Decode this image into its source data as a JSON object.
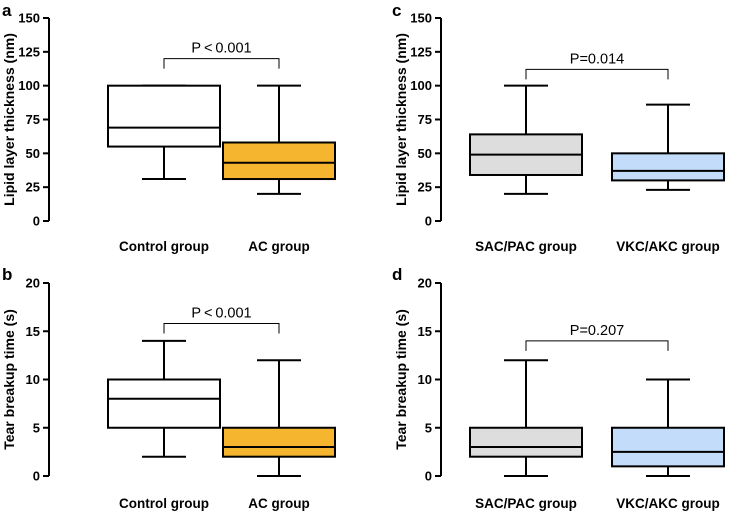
{
  "chart_data": [
    {
      "panel": "a",
      "type": "box",
      "ylabel": "Lipid layer thickness (nm)",
      "ylim": [
        0,
        150
      ],
      "yticks": [
        0,
        25,
        50,
        75,
        100,
        125,
        150
      ],
      "categories": [
        "Control group",
        "AC group"
      ],
      "boxes": [
        {
          "min": 31,
          "q1": 55,
          "median": 69,
          "q3": 100,
          "max": 100,
          "color": "#ffffff"
        },
        {
          "min": 20,
          "q1": 31,
          "median": 43,
          "q3": 58,
          "max": 100,
          "color": "#f5b52e"
        }
      ],
      "annotation": {
        "text": "P < 0.001",
        "bracket_y": 120
      }
    },
    {
      "panel": "b",
      "type": "box",
      "ylabel": "Tear breakup time (s)",
      "ylim": [
        0,
        20
      ],
      "yticks": [
        0,
        5,
        10,
        15,
        20
      ],
      "categories": [
        "Control group",
        "AC group"
      ],
      "boxes": [
        {
          "min": 2,
          "q1": 5,
          "median": 8,
          "q3": 10,
          "max": 14,
          "color": "#ffffff"
        },
        {
          "min": 0,
          "q1": 2,
          "median": 3,
          "q3": 5,
          "max": 12,
          "color": "#f5b52e"
        }
      ],
      "annotation": {
        "text": "P < 0.001",
        "bracket_y": 15.8
      }
    },
    {
      "panel": "c",
      "type": "box",
      "ylabel": "Lipid layer thickness (nm)",
      "ylim": [
        0,
        150
      ],
      "yticks": [
        0,
        25,
        50,
        75,
        100,
        125,
        150
      ],
      "categories": [
        "SAC/PAC group",
        "VKC/AKC group"
      ],
      "boxes": [
        {
          "min": 20,
          "q1": 34,
          "median": 49,
          "q3": 64,
          "max": 100,
          "color": "#dddddd"
        },
        {
          "min": 23,
          "q1": 30,
          "median": 37,
          "q3": 50,
          "max": 86,
          "color": "#c2dcf9"
        }
      ],
      "annotation": {
        "text": "P=0.014",
        "bracket_y": 112
      }
    },
    {
      "panel": "d",
      "type": "box",
      "ylabel": "Tear breakup time (s)",
      "ylim": [
        0,
        20
      ],
      "yticks": [
        0,
        5,
        10,
        15,
        20
      ],
      "categories": [
        "SAC/PAC group",
        "VKC/AKC group"
      ],
      "boxes": [
        {
          "min": 0,
          "q1": 2,
          "median": 3,
          "q3": 5,
          "max": 12,
          "color": "#dddddd"
        },
        {
          "min": 0,
          "q1": 1,
          "median": 2.5,
          "q3": 5,
          "max": 10,
          "color": "#c2dcf9"
        }
      ],
      "annotation": {
        "text": "P=0.207",
        "bracket_y": 14
      }
    }
  ]
}
